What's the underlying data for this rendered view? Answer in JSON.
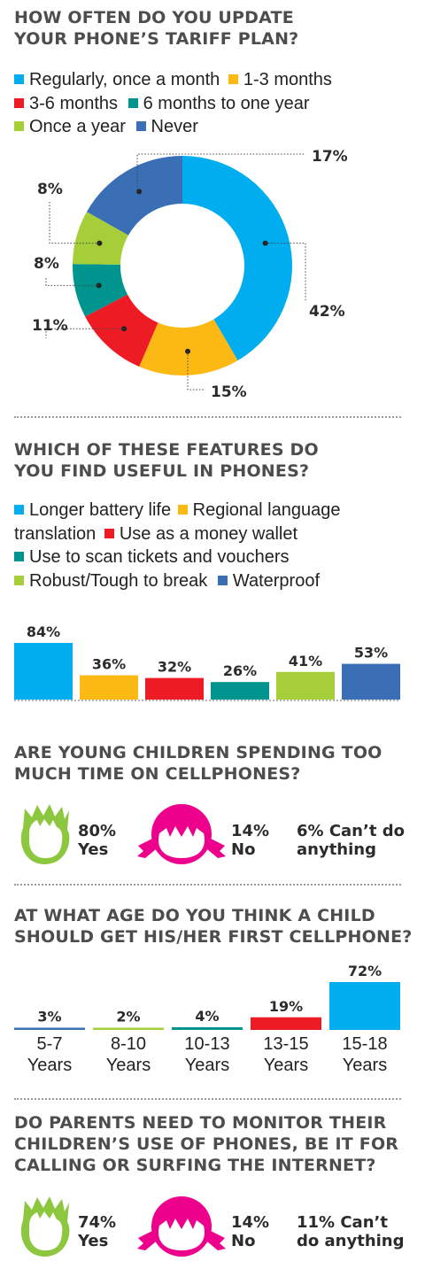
{
  "colors": {
    "light_blue": "#00aeef",
    "orange": "#fdb913",
    "red": "#ed1c24",
    "teal": "#00948f",
    "lime": "#a6ce39",
    "blue": "#3a6eb5",
    "green": "#8dc63f",
    "pink": "#ec008c"
  },
  "chart_data": [
    {
      "type": "pie",
      "title": "HOW OFTEN DO YOU UPDATE YOUR PHONE'S TARIFF PLAN?",
      "title_lines": [
        "HOW OFTEN DO YOU UPDATE",
        "YOUR PHONE’S TARIFF PLAN?"
      ],
      "legend": "top",
      "categories": [
        "Regularly, once a month",
        "1-3 months",
        "3-6 months",
        "6 months to one year",
        "Once a year",
        "Never"
      ],
      "values": [
        42,
        15,
        11,
        8,
        8,
        17
      ],
      "labels": [
        "42%",
        "15%",
        "11%",
        "8%",
        "8%",
        "17%"
      ],
      "colors": [
        "#00aeef",
        "#fdb913",
        "#ed1c24",
        "#00948f",
        "#a6ce39",
        "#3a6eb5"
      ]
    },
    {
      "type": "bar",
      "title": "WHICH OF THESE FEATURES DO YOU FIND USEFUL IN PHONES?",
      "title_lines": [
        "WHICH OF THESE FEATURES DO",
        "YOU FIND USEFUL IN PHONES?"
      ],
      "legend": "top",
      "categories": [
        "Longer battery life",
        "Regional language translation",
        "Use as a money wallet",
        "Use to scan tickets and vouchers",
        "Robust/Tough to break",
        "Waterproof"
      ],
      "values": [
        84,
        36,
        32,
        26,
        41,
        53
      ],
      "labels": [
        "84%",
        "36%",
        "32%",
        "26%",
        "41%",
        "53%"
      ],
      "colors": [
        "#00aeef",
        "#fdb913",
        "#ed1c24",
        "#00948f",
        "#a6ce39",
        "#3a6eb5"
      ]
    },
    {
      "type": "bar",
      "title": "AT WHAT AGE DO YOU THINK A CHILD SHOULD GET HIS/HER FIRST CELLPHONE?",
      "title_lines": [
        "AT WHAT AGE DO YOU THINK A CHILD",
        "SHOULD GET HIS/HER FIRST CELLPHONE?"
      ],
      "categories": [
        "5-7 Years",
        "8-10 Years",
        "10-13 Years",
        "13-15 Years",
        "15-18 Years"
      ],
      "category_lines": [
        [
          "5-7",
          "Years"
        ],
        [
          "8-10",
          "Years"
        ],
        [
          "10-13",
          "Years"
        ],
        [
          "13-15",
          "Years"
        ],
        [
          "15-18",
          "Years"
        ]
      ],
      "values": [
        3,
        2,
        4,
        19,
        72
      ],
      "labels": [
        "3%",
        "2%",
        "4%",
        "19%",
        "72%"
      ],
      "colors": [
        "#3a6eb5",
        "#a6ce39",
        "#00948f",
        "#ed1c24",
        "#00aeef"
      ]
    }
  ],
  "children_time": {
    "title_lines": [
      "ARE YOUNG CHILDREN SPENDING TOO",
      "MUCH TIME ON CELLPHONES?"
    ],
    "yes_pct": "80%",
    "yes_label": "Yes",
    "no_pct": "14%",
    "no_label": "No",
    "other_line1": "6% Can’t do",
    "other_line2": "anything"
  },
  "parents_monitor": {
    "title_lines": [
      "DO PARENTS NEED TO MONITOR THEIR",
      "CHILDREN’S USE OF PHONES, BE IT FOR",
      "CALLING OR SURFING THE INTERNET?"
    ],
    "yes_pct": "74%",
    "yes_label": "Yes",
    "no_pct": "14%",
    "no_label": "No",
    "other_line1": "11% Can’t",
    "other_line2": "do anything"
  }
}
